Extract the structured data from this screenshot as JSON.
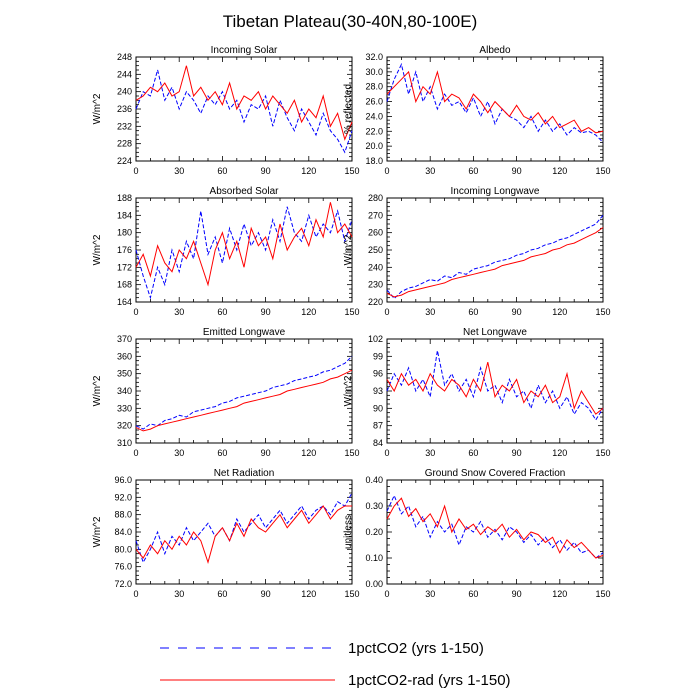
{
  "figure": {
    "title": "Tibetan Plateau(30-40N,80-100E)"
  },
  "legend": {
    "placement": "bottom-center",
    "entries": [
      {
        "label": "1pctCO2 (yrs 1-150)",
        "color": "#0000ff",
        "dash": "dashed"
      },
      {
        "label": "1pctCO2-rad (yrs 1-150)",
        "color": "#ff0000",
        "dash": "solid"
      }
    ]
  },
  "chart_data": [
    {
      "type": "line",
      "title": "Incoming Solar",
      "ylabel": "W/m^2",
      "xlim": [
        0,
        150
      ],
      "ylim": [
        224,
        248
      ],
      "xticks": [
        0,
        30,
        60,
        90,
        120,
        150
      ],
      "yticks": [
        224,
        228,
        232,
        236,
        240,
        244,
        248
      ],
      "ytick_labels": [
        "224",
        "228",
        "232",
        "236",
        "240",
        "244",
        "248"
      ],
      "x": [
        0,
        5,
        10,
        15,
        20,
        25,
        30,
        35,
        40,
        45,
        50,
        55,
        60,
        65,
        70,
        75,
        80,
        85,
        90,
        95,
        100,
        105,
        110,
        115,
        120,
        125,
        130,
        135,
        140,
        145,
        150
      ],
      "series": [
        {
          "name": "1pctCO2 (yrs 1-150)",
          "color": "#0000ff",
          "dash": "dashed",
          "values": [
            236,
            240,
            239,
            245,
            238,
            241,
            236,
            240,
            238,
            235,
            239,
            237,
            240,
            236,
            238,
            233,
            237,
            236,
            239,
            232,
            238,
            234,
            231,
            236,
            233,
            230,
            235,
            231,
            229,
            226,
            231
          ]
        },
        {
          "name": "1pctCO2-rad (yrs 1-150)",
          "color": "#ff0000",
          "dash": "solid",
          "values": [
            238,
            239,
            241,
            240,
            242,
            239,
            240,
            246,
            239,
            241,
            238,
            240,
            237,
            242,
            236,
            239,
            238,
            240,
            236,
            239,
            237,
            235,
            238,
            233,
            236,
            234,
            239,
            232,
            235,
            229,
            233
          ]
        }
      ]
    },
    {
      "type": "line",
      "title": "Albedo",
      "ylabel": "% reflected",
      "xlim": [
        0,
        150
      ],
      "ylim": [
        18,
        32
      ],
      "xticks": [
        0,
        30,
        60,
        90,
        120,
        150
      ],
      "yticks": [
        18,
        20,
        22,
        24,
        26,
        28,
        30,
        32
      ],
      "ytick_labels": [
        "18.0",
        "20.0",
        "22.0",
        "24.0",
        "26.0",
        "28.0",
        "30.0",
        "32.0"
      ],
      "x": [
        0,
        5,
        10,
        15,
        20,
        25,
        30,
        35,
        40,
        45,
        50,
        55,
        60,
        65,
        70,
        75,
        80,
        85,
        90,
        95,
        100,
        105,
        110,
        115,
        120,
        125,
        130,
        135,
        140,
        145,
        150
      ],
      "series": [
        {
          "name": "1pctCO2 (yrs 1-150)",
          "color": "#0000ff",
          "dash": "dashed",
          "values": [
            26,
            29,
            31,
            27,
            30,
            26,
            28,
            25,
            27,
            25.5,
            26,
            24.5,
            26.5,
            24,
            26,
            23,
            25,
            24,
            23.5,
            22.5,
            24,
            22,
            23.5,
            22,
            23,
            21.5,
            22.5,
            21.8,
            22,
            21.5,
            20.5
          ]
        },
        {
          "name": "1pctCO2-rad (yrs 1-150)",
          "color": "#ff0000",
          "dash": "solid",
          "values": [
            27,
            28,
            29,
            30,
            26,
            28,
            27,
            30,
            26,
            27,
            26.5,
            25,
            27,
            26,
            24.5,
            26,
            25,
            24,
            25.5,
            24,
            23.5,
            24.5,
            23,
            24,
            22.5,
            23,
            23.5,
            22,
            22.5,
            21.8,
            22
          ]
        }
      ]
    },
    {
      "type": "line",
      "title": "Absorbed Solar",
      "ylabel": "W/m^2",
      "xlim": [
        0,
        150
      ],
      "ylim": [
        164,
        188
      ],
      "xticks": [
        0,
        30,
        60,
        90,
        120,
        150
      ],
      "yticks": [
        164,
        168,
        172,
        176,
        180,
        184,
        188
      ],
      "ytick_labels": [
        "164",
        "168",
        "172",
        "176",
        "180",
        "184",
        "188"
      ],
      "x": [
        0,
        5,
        10,
        15,
        20,
        25,
        30,
        35,
        40,
        45,
        50,
        55,
        60,
        65,
        70,
        75,
        80,
        85,
        90,
        95,
        100,
        105,
        110,
        115,
        120,
        125,
        130,
        135,
        140,
        145,
        150
      ],
      "series": [
        {
          "name": "1pctCO2 (yrs 1-150)",
          "color": "#0000ff",
          "dash": "dashed",
          "values": [
            176,
            170,
            165,
            172,
            168,
            176,
            171,
            178,
            174,
            185,
            175,
            179,
            173,
            181,
            176,
            182,
            177,
            180,
            176,
            183,
            178,
            186,
            180,
            178,
            184,
            179,
            182,
            180,
            185,
            178,
            183
          ]
        },
        {
          "name": "1pctCO2-rad (yrs 1-150)",
          "color": "#ff0000",
          "dash": "solid",
          "values": [
            172,
            175,
            170,
            177,
            173,
            171,
            176,
            174,
            178,
            173,
            168,
            176,
            180,
            174,
            178,
            172,
            181,
            177,
            179,
            174,
            182,
            176,
            179,
            181,
            177,
            183,
            179,
            187,
            180,
            182,
            179
          ]
        }
      ]
    },
    {
      "type": "line",
      "title": "Incoming Longwave",
      "ylabel": "W/m^2",
      "xlim": [
        0,
        150
      ],
      "ylim": [
        220,
        280
      ],
      "xticks": [
        0,
        30,
        60,
        90,
        120,
        150
      ],
      "yticks": [
        220,
        230,
        240,
        250,
        260,
        270,
        280
      ],
      "ytick_labels": [
        "220",
        "230",
        "240",
        "250",
        "260",
        "270",
        "280"
      ],
      "x": [
        0,
        5,
        10,
        15,
        20,
        25,
        30,
        35,
        40,
        45,
        50,
        55,
        60,
        65,
        70,
        75,
        80,
        85,
        90,
        95,
        100,
        105,
        110,
        115,
        120,
        125,
        130,
        135,
        140,
        145,
        150
      ],
      "series": [
        {
          "name": "1pctCO2 (yrs 1-150)",
          "color": "#0000ff",
          "dash": "dashed",
          "values": [
            227,
            222,
            226,
            228,
            229,
            231,
            233,
            232,
            235,
            234,
            237,
            236,
            239,
            240,
            241,
            243,
            244,
            245,
            247,
            248,
            250,
            251,
            253,
            254,
            256,
            257,
            259,
            261,
            263,
            265,
            270
          ]
        },
        {
          "name": "1pctCO2-rad (yrs 1-150)",
          "color": "#ff0000",
          "dash": "solid",
          "values": [
            225,
            223,
            224,
            226,
            227,
            228,
            229,
            230,
            231,
            233,
            234,
            235,
            236,
            237,
            238,
            239,
            241,
            242,
            243,
            244,
            246,
            247,
            248,
            250,
            251,
            253,
            254,
            256,
            258,
            260,
            263
          ]
        }
      ]
    },
    {
      "type": "line",
      "title": "Emitted Longwave",
      "ylabel": "W/m^2",
      "xlim": [
        0,
        150
      ],
      "ylim": [
        310,
        370
      ],
      "xticks": [
        0,
        30,
        60,
        90,
        120,
        150
      ],
      "yticks": [
        310,
        320,
        330,
        340,
        350,
        360,
        370
      ],
      "ytick_labels": [
        "310",
        "320",
        "330",
        "340",
        "350",
        "360",
        "370"
      ],
      "x": [
        0,
        5,
        10,
        15,
        20,
        25,
        30,
        35,
        40,
        45,
        50,
        55,
        60,
        65,
        70,
        75,
        80,
        85,
        90,
        95,
        100,
        105,
        110,
        115,
        120,
        125,
        130,
        135,
        140,
        145,
        150
      ],
      "series": [
        {
          "name": "1pctCO2 (yrs 1-150)",
          "color": "#0000ff",
          "dash": "dashed",
          "values": [
            320,
            318,
            321,
            320,
            323,
            324,
            326,
            325,
            328,
            329,
            330,
            331,
            333,
            334,
            336,
            337,
            338,
            339,
            340,
            342,
            343,
            344,
            346,
            347,
            348,
            349,
            351,
            352,
            354,
            356,
            360
          ]
        },
        {
          "name": "1pctCO2-rad (yrs 1-150)",
          "color": "#ff0000",
          "dash": "solid",
          "values": [
            319,
            317,
            318,
            320,
            321,
            322,
            323,
            324,
            325,
            326,
            327,
            328,
            329,
            330,
            331,
            333,
            334,
            335,
            336,
            337,
            338,
            340,
            341,
            342,
            343,
            344,
            345,
            347,
            348,
            350,
            352
          ]
        }
      ]
    },
    {
      "type": "line",
      "title": "Net Longwave",
      "ylabel": "W/m^2",
      "xlim": [
        0,
        150
      ],
      "ylim": [
        84,
        102
      ],
      "xticks": [
        0,
        30,
        60,
        90,
        120,
        150
      ],
      "yticks": [
        84,
        87,
        90,
        93,
        96,
        99,
        102
      ],
      "ytick_labels": [
        "84",
        "87",
        "90",
        "93",
        "96",
        "99",
        "102"
      ],
      "x": [
        0,
        5,
        10,
        15,
        20,
        25,
        30,
        35,
        40,
        45,
        50,
        55,
        60,
        65,
        70,
        75,
        80,
        85,
        90,
        95,
        100,
        105,
        110,
        115,
        120,
        125,
        130,
        135,
        140,
        145,
        150
      ],
      "series": [
        {
          "name": "1pctCO2 (yrs 1-150)",
          "color": "#0000ff",
          "dash": "dashed",
          "values": [
            93,
            96,
            94,
            97,
            93,
            95,
            92,
            100,
            94,
            96,
            93,
            95,
            92,
            97,
            93,
            94,
            91,
            95,
            92,
            93,
            90,
            94,
            91,
            93,
            90,
            92,
            89,
            91,
            90,
            88,
            90
          ]
        },
        {
          "name": "1pctCO2-rad (yrs 1-150)",
          "color": "#ff0000",
          "dash": "solid",
          "values": [
            95,
            93,
            96,
            94,
            95,
            93,
            96,
            94,
            93,
            95,
            94,
            92,
            95,
            93,
            98,
            92,
            94,
            93,
            95,
            91,
            93,
            92,
            94,
            91,
            92,
            96,
            90,
            93,
            91,
            89,
            90
          ]
        }
      ]
    },
    {
      "type": "line",
      "title": "Net Radiation",
      "ylabel": "W/m^2",
      "xlim": [
        0,
        150
      ],
      "ylim": [
        72,
        96
      ],
      "xticks": [
        0,
        30,
        60,
        90,
        120,
        150
      ],
      "yticks": [
        72,
        76,
        80,
        84,
        88,
        92,
        96
      ],
      "ytick_labels": [
        "72.0",
        "76.0",
        "80.0",
        "84.0",
        "88.0",
        "92.0",
        "96.0"
      ],
      "x": [
        0,
        5,
        10,
        15,
        20,
        25,
        30,
        35,
        40,
        45,
        50,
        55,
        60,
        65,
        70,
        75,
        80,
        85,
        90,
        95,
        100,
        105,
        110,
        115,
        120,
        125,
        130,
        135,
        140,
        145,
        150
      ],
      "series": [
        {
          "name": "1pctCO2 (yrs 1-150)",
          "color": "#0000ff",
          "dash": "dashed",
          "values": [
            82,
            77,
            80,
            84,
            79,
            83,
            81,
            85,
            82,
            84,
            86,
            83,
            85,
            82,
            87,
            84,
            86,
            88,
            85,
            87,
            89,
            86,
            88,
            90,
            87,
            89,
            90,
            88,
            91,
            90,
            93
          ]
        },
        {
          "name": "1pctCO2-rad (yrs 1-150)",
          "color": "#ff0000",
          "dash": "solid",
          "values": [
            80,
            78,
            81,
            79,
            82,
            80,
            83,
            81,
            84,
            82,
            77,
            83,
            85,
            82,
            86,
            83,
            87,
            85,
            84,
            86,
            88,
            85,
            87,
            89,
            86,
            88,
            90,
            87,
            89,
            90,
            90
          ]
        }
      ]
    },
    {
      "type": "line",
      "title": "Ground Snow Covered Fraction",
      "ylabel": "unitless",
      "xlim": [
        0,
        150
      ],
      "ylim": [
        0,
        0.4
      ],
      "xticks": [
        0,
        30,
        60,
        90,
        120,
        150
      ],
      "yticks": [
        0,
        0.1,
        0.2,
        0.3,
        0.4
      ],
      "ytick_labels": [
        "0.00",
        "0.10",
        "0.20",
        "0.30",
        "0.40"
      ],
      "x": [
        0,
        5,
        10,
        15,
        20,
        25,
        30,
        35,
        40,
        45,
        50,
        55,
        60,
        65,
        70,
        75,
        80,
        85,
        90,
        95,
        100,
        105,
        110,
        115,
        120,
        125,
        130,
        135,
        140,
        145,
        150
      ],
      "series": [
        {
          "name": "1pctCO2 (yrs 1-150)",
          "color": "#0000ff",
          "dash": "dashed",
          "values": [
            0.28,
            0.34,
            0.27,
            0.3,
            0.22,
            0.26,
            0.18,
            0.24,
            0.2,
            0.23,
            0.15,
            0.22,
            0.2,
            0.24,
            0.18,
            0.21,
            0.17,
            0.22,
            0.2,
            0.16,
            0.19,
            0.15,
            0.18,
            0.14,
            0.17,
            0.13,
            0.16,
            0.12,
            0.13,
            0.1,
            0.12
          ]
        },
        {
          "name": "1pctCO2-rad (yrs 1-150)",
          "color": "#ff0000",
          "dash": "solid",
          "values": [
            0.25,
            0.3,
            0.33,
            0.26,
            0.29,
            0.24,
            0.27,
            0.22,
            0.3,
            0.2,
            0.25,
            0.21,
            0.23,
            0.19,
            0.22,
            0.2,
            0.23,
            0.18,
            0.21,
            0.17,
            0.2,
            0.19,
            0.16,
            0.18,
            0.12,
            0.17,
            0.14,
            0.16,
            0.13,
            0.1,
            0.11
          ]
        }
      ]
    }
  ]
}
